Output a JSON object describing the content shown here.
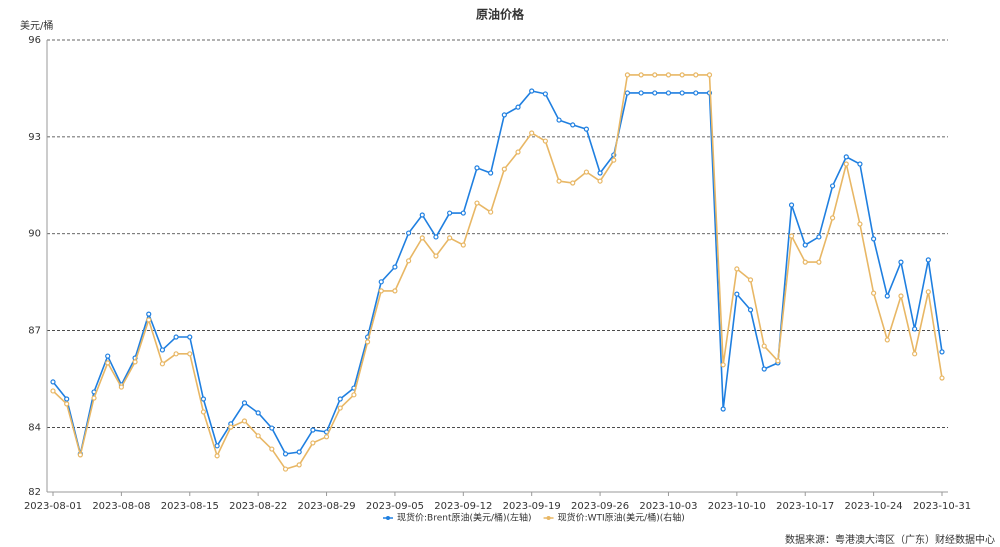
{
  "chart_data": {
    "type": "line",
    "title": "原油价格",
    "unit": "美元/桶",
    "categories": [
      "2023-08-01",
      null,
      null,
      null,
      null,
      "2023-08-08",
      null,
      null,
      null,
      null,
      "2023-08-15",
      null,
      null,
      null,
      null,
      "2023-08-22",
      null,
      null,
      null,
      null,
      "2023-08-29",
      null,
      null,
      null,
      null,
      "2023-09-05",
      null,
      null,
      null,
      null,
      "2023-09-12",
      null,
      null,
      null,
      null,
      "2023-09-19",
      null,
      null,
      null,
      null,
      "2023-09-26",
      null,
      null,
      null,
      null,
      "2023-10-03",
      null,
      null,
      null,
      null,
      "2023-10-10",
      null,
      null,
      null,
      null,
      "2023-10-17",
      null,
      null,
      null,
      null,
      "2023-10-24",
      null,
      null,
      null,
      null,
      "2023-10-31"
    ],
    "series": [
      {
        "name": "现货价:Brent原油(美元/桶)(左轴)",
        "color": "#1f7fe0",
        "values": [
          85.41,
          84.88,
          83.18,
          85.1,
          86.21,
          85.32,
          86.15,
          87.51,
          86.4,
          86.8,
          86.8,
          84.88,
          83.43,
          84.11,
          84.76,
          84.45,
          83.98,
          83.18,
          83.24,
          83.92,
          83.86,
          84.88,
          85.22,
          86.8,
          88.51,
          88.97,
          90.02,
          90.58,
          89.9,
          90.64,
          90.64,
          92.04,
          91.88,
          93.68,
          93.92,
          94.42,
          94.33,
          93.52,
          93.37,
          93.24,
          91.88,
          92.44,
          94.36,
          94.36,
          94.36,
          94.36,
          94.36,
          94.36,
          94.36,
          84.57,
          88.13,
          87.64,
          85.81,
          86.0,
          90.89,
          89.65,
          89.9,
          91.48,
          92.38,
          92.16,
          89.84,
          88.07,
          89.12,
          87.05,
          89.19,
          86.34
        ]
      },
      {
        "name": "现货价:WTI原油(美元/桶)(右轴)",
        "color": "#e8b765",
        "values": [
          85.13,
          84.73,
          83.15,
          84.91,
          86.0,
          85.25,
          86.03,
          87.33,
          85.97,
          86.28,
          86.28,
          84.48,
          83.12,
          84.01,
          84.2,
          83.74,
          83.33,
          82.71,
          82.84,
          83.52,
          83.71,
          84.6,
          85.01,
          86.65,
          88.23,
          88.23,
          89.16,
          89.87,
          89.31,
          89.87,
          89.65,
          90.95,
          90.67,
          92.0,
          92.53,
          93.12,
          92.87,
          91.63,
          91.57,
          91.91,
          91.63,
          92.28,
          94.92,
          94.92,
          94.92,
          94.92,
          94.92,
          94.92,
          94.92,
          85.94,
          88.91,
          88.57,
          86.52,
          86.06,
          89.93,
          89.12,
          89.12,
          90.49,
          92.16,
          90.3,
          88.16,
          86.71,
          88.07,
          86.28,
          88.2,
          85.53
        ]
      }
    ],
    "ylim": [
      82,
      96
    ],
    "yticks": [
      82,
      84,
      87,
      90,
      93,
      96
    ],
    "grid": true,
    "legend": "bottom",
    "source": "数据来源：粤港澳大湾区（广东）财经数据中心"
  }
}
